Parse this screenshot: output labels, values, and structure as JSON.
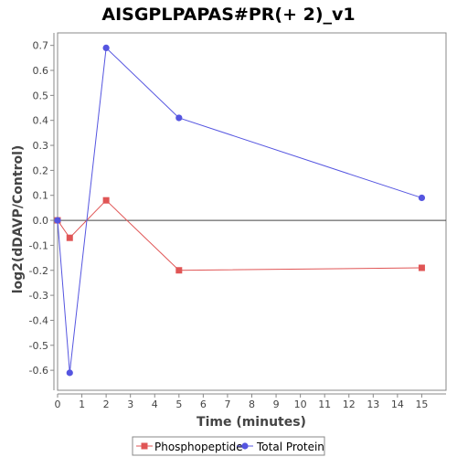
{
  "chart_data": {
    "type": "line",
    "title": "AISGPLPAPAS#PR(+ 2)_v1",
    "xlabel": "Time (minutes)",
    "ylabel": "log2(dDAVP/Control)",
    "xlim": [
      0,
      16
    ],
    "ylim": [
      -0.68,
      0.75
    ],
    "x_ticks": [
      0,
      1,
      2,
      3,
      4,
      5,
      6,
      7,
      8,
      9,
      10,
      11,
      12,
      13,
      14,
      15
    ],
    "y_ticks": [
      -0.6,
      -0.5,
      -0.4,
      -0.3,
      -0.2,
      -0.1,
      0.0,
      0.1,
      0.2,
      0.3,
      0.4,
      0.5,
      0.6,
      0.7
    ],
    "y_tick_labels": [
      "-0.6",
      "-0.5",
      "-0.4",
      "-0.3",
      "-0.2",
      "-0.1",
      "0.0",
      "0.1",
      "0.2",
      "0.3",
      "0.4",
      "0.5",
      "0.6",
      "0.7"
    ],
    "grid": false,
    "zero_line": true,
    "legend_position": "bottom",
    "series": [
      {
        "name": "Phosphopeptide",
        "color": "#e05555",
        "marker": "square",
        "x": [
          0,
          0.5,
          2,
          5,
          15
        ],
        "y": [
          0.0,
          -0.07,
          0.08,
          -0.2,
          -0.19
        ]
      },
      {
        "name": "Total Protein",
        "color": "#5555e0",
        "marker": "circle",
        "x": [
          0,
          0.5,
          2,
          5,
          15
        ],
        "y": [
          0.0,
          -0.61,
          0.69,
          0.41,
          0.09
        ]
      }
    ]
  }
}
